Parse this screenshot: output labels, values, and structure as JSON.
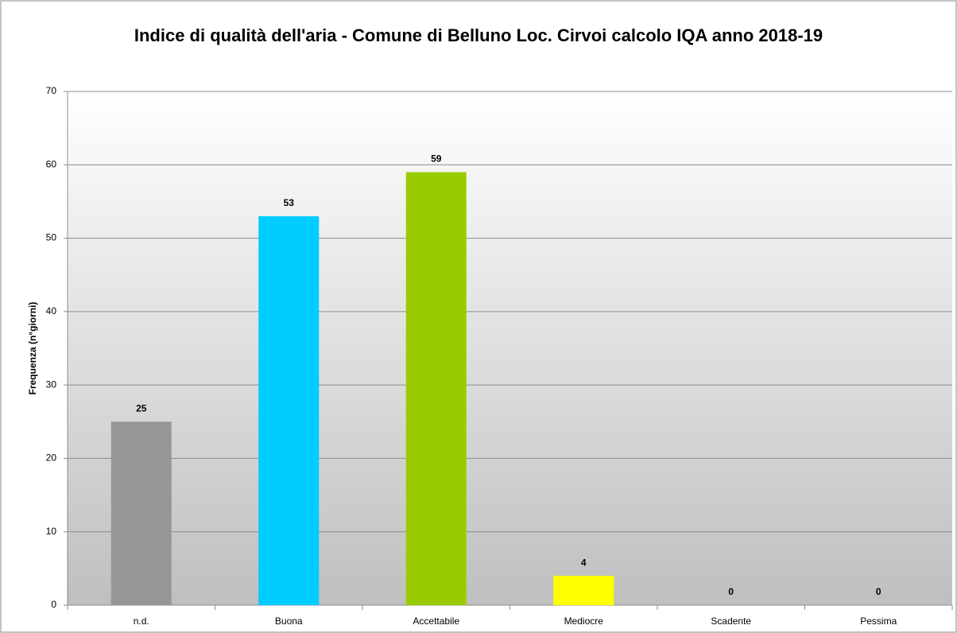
{
  "chart_data": {
    "type": "bar",
    "title": "Indice di qualità dell'aria - Comune di Belluno Loc. Cirvoi calcolo IQA anno 2018-19",
    "y_label": "Frequenza (n°giorni)",
    "categories": [
      "n.d.",
      "Buona",
      "Accettabile",
      "Mediocre",
      "Scadente",
      "Pessima"
    ],
    "values": [
      25,
      53,
      59,
      4,
      0,
      0
    ],
    "colors": [
      "#969696",
      "#00ccff",
      "#99cc00",
      "#ffff00",
      "#ff9900",
      "#ff0000"
    ],
    "ylim": [
      0,
      70
    ],
    "yticks": [
      0,
      10,
      20,
      30,
      40,
      50,
      60,
      70
    ],
    "grid": true
  }
}
